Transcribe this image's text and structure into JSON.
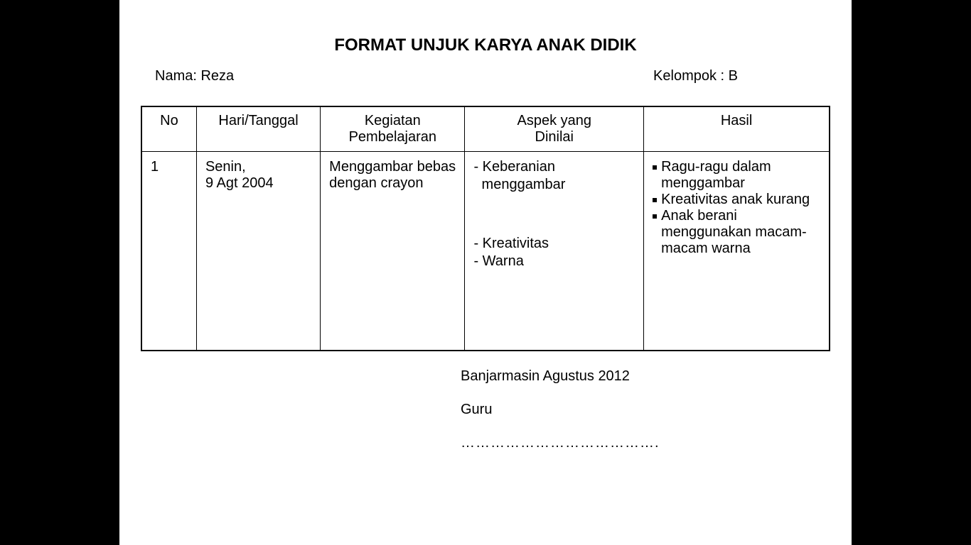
{
  "title": "FORMAT UNJUK KARYA  ANAK DIDIK",
  "info": {
    "name_label": "Nama: ",
    "name_value": "Reza",
    "group_label": "Kelompok : ",
    "group_value": "B"
  },
  "table": {
    "headers": {
      "no": "No",
      "date": "Hari/Tanggal",
      "activity": "Kegiatan Pembelajaran",
      "aspect_line1": "Aspek yang",
      "aspect_line2": "Dinilai",
      "result": "Hasil"
    },
    "row": {
      "no": "1",
      "date_line1": "Senin,",
      "date_line2": "9 Agt 2004",
      "activity": "Menggambar bebas dengan crayon",
      "aspects": {
        "a1": "- Keberanian",
        "a1b": "  menggambar",
        "a2": "- Kreativitas",
        "a3": "- Warna"
      },
      "results": {
        "r1": "Ragu-ragu dalam menggambar",
        "r2": "Kreativitas anak kurang",
        "r3": "Anak berani menggunakan macam-macam warna"
      }
    }
  },
  "footer": {
    "place_date": "Banjarmasin Agustus 2012",
    "role": "Guru",
    "signature_line": "…………………………………."
  }
}
